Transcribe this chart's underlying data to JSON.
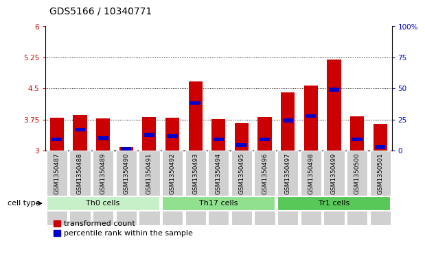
{
  "title": "GDS5166 / 10340771",
  "samples": [
    "GSM1350487",
    "GSM1350488",
    "GSM1350489",
    "GSM1350490",
    "GSM1350491",
    "GSM1350492",
    "GSM1350493",
    "GSM1350494",
    "GSM1350495",
    "GSM1350496",
    "GSM1350497",
    "GSM1350498",
    "GSM1350499",
    "GSM1350500",
    "GSM1350501"
  ],
  "bar_values": [
    3.79,
    3.86,
    3.77,
    3.08,
    3.81,
    3.79,
    4.67,
    3.76,
    3.66,
    3.81,
    4.4,
    4.57,
    5.19,
    3.82,
    3.65
  ],
  "blue_values": [
    3.27,
    3.5,
    3.3,
    3.04,
    3.38,
    3.35,
    4.15,
    3.27,
    3.13,
    3.27,
    3.73,
    3.83,
    4.47,
    3.27,
    3.08
  ],
  "cell_groups": [
    {
      "label": "Th0 cells",
      "start": 0,
      "end": 4,
      "color": "#c8f0c8"
    },
    {
      "label": "Th17 cells",
      "start": 5,
      "end": 9,
      "color": "#90e090"
    },
    {
      "label": "Tr1 cells",
      "start": 10,
      "end": 14,
      "color": "#58c858"
    }
  ],
  "ylim": [
    3.0,
    6.0
  ],
  "y_left_ticks": [
    3,
    3.75,
    4.5,
    5.25,
    6
  ],
  "y_right_ticks": [
    0,
    25,
    50,
    75,
    100
  ],
  "y_right_labels": [
    "0",
    "25",
    "50",
    "75",
    "100%"
  ],
  "ytick_color": "#cc0000",
  "ytick_right_color": "#0000cc",
  "bar_color": "#cc0000",
  "blue_color": "#0000cc",
  "bar_width": 0.6,
  "legend_red_label": "transformed count",
  "legend_blue_label": "percentile rank within the sample",
  "cell_type_label": "cell type",
  "title_fontsize": 10,
  "tick_fontsize": 7.5,
  "xtick_fontsize": 6.5
}
